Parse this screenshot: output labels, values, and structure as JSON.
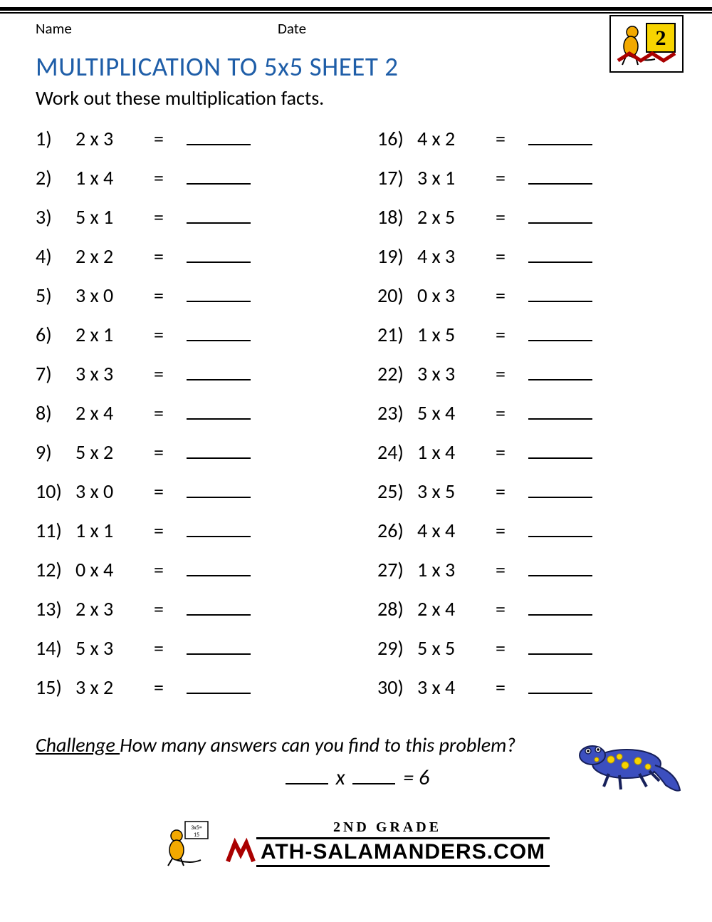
{
  "header": {
    "name_label": "Name",
    "date_label": "Date",
    "badge_color": "#f3a900",
    "badge_number": "2"
  },
  "title": "MULTIPLICATION TO 5x5 SHEET 2",
  "title_color": "#1f5ea8",
  "instruction": "Work out these multiplication facts.",
  "columns": [
    [
      {
        "n": "1)",
        "e": "2 x 3"
      },
      {
        "n": "2)",
        "e": "1 x 4"
      },
      {
        "n": "3)",
        "e": "5 x 1"
      },
      {
        "n": "4)",
        "e": "2 x 2"
      },
      {
        "n": "5)",
        "e": "3 x 0"
      },
      {
        "n": "6)",
        "e": "2 x 1"
      },
      {
        "n": "7)",
        "e": "3 x 3"
      },
      {
        "n": "8)",
        "e": "2 x 4"
      },
      {
        "n": "9)",
        "e": "5 x 2"
      },
      {
        "n": "10)",
        "e": "3 x 0"
      },
      {
        "n": "11)",
        "e": "1 x 1"
      },
      {
        "n": "12)",
        "e": "0 x 4"
      },
      {
        "n": "13)",
        "e": "2 x 3"
      },
      {
        "n": "14)",
        "e": "5 x 3"
      },
      {
        "n": "15)",
        "e": "3 x 2"
      }
    ],
    [
      {
        "n": "16)",
        "e": "4 x 2"
      },
      {
        "n": "17)",
        "e": "3 x 1"
      },
      {
        "n": "18)",
        "e": "2 x 5"
      },
      {
        "n": "19)",
        "e": "4 x 3"
      },
      {
        "n": "20)",
        "e": "0 x 3"
      },
      {
        "n": "21)",
        "e": "1 x 5"
      },
      {
        "n": "22)",
        "e": "3 x 3"
      },
      {
        "n": "23)",
        "e": "5 x 4"
      },
      {
        "n": "24)",
        "e": "1 x 4"
      },
      {
        "n": "25)",
        "e": "3 x 5"
      },
      {
        "n": "26)",
        "e": "4 x 4"
      },
      {
        "n": "27)",
        "e": "1 x 3"
      },
      {
        "n": "28)",
        "e": "2 x 4"
      },
      {
        "n": "29)",
        "e": "5 x 5"
      },
      {
        "n": "30)",
        "e": "3 x 4"
      }
    ]
  ],
  "equals": "=",
  "challenge": {
    "label": "Challenge ",
    "text": "How many answers can you find to this problem?",
    "x": "x",
    "rhs": " = 6"
  },
  "lizard": {
    "body_color": "#3c4fbf",
    "spot_color": "#f7d400",
    "outline": "#17205a"
  },
  "footer": {
    "grade": "2ND GRADE",
    "site": "ATH-SALAMANDERS.COM",
    "mascot_color": "#f3a900"
  }
}
